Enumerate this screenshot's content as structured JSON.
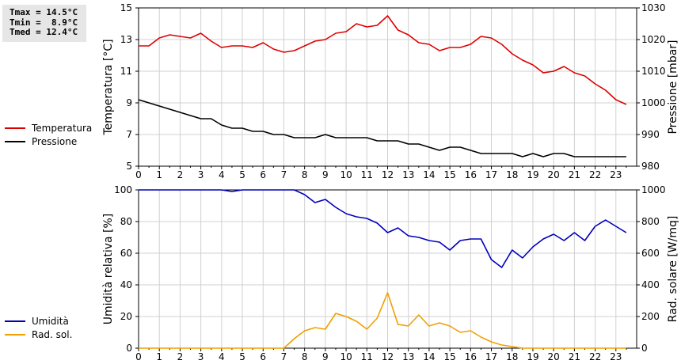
{
  "stats": {
    "tmax": "Tmax = 14.5°C",
    "tmin": "Tmin =  8.9°C",
    "tmed": "Tmed = 12.4°C"
  },
  "colors": {
    "temperatura": "#dd0000",
    "pressione": "#000000",
    "umidita": "#0000bb",
    "radsol": "#f0a000",
    "grid": "#d0d0d0"
  },
  "chart_data": [
    {
      "type": "line",
      "xlabel": "",
      "x_ticks": [
        "0",
        "1",
        "2",
        "3",
        "4",
        "5",
        "6",
        "7",
        "8",
        "9",
        "10",
        "11",
        "12",
        "13",
        "14",
        "15",
        "16",
        "17",
        "18",
        "19",
        "20",
        "21",
        "22",
        "23"
      ],
      "xlim": [
        0,
        24
      ],
      "ylabel_left": "Temperatura [°C]",
      "ylabel_right": "Pressione [mbar]",
      "ylim_left": [
        5,
        15
      ],
      "ylim_right": [
        980,
        1030
      ],
      "y_ticks_left": [
        "5",
        "7",
        "9",
        "11",
        "13",
        "15"
      ],
      "y_ticks_right": [
        "980",
        "990",
        "1000",
        "1010",
        "1020",
        "1030"
      ],
      "series": [
        {
          "name": "Temperatura",
          "axis": "left",
          "x": [
            0,
            0.5,
            1,
            1.5,
            2,
            2.5,
            3,
            3.5,
            4,
            4.5,
            5,
            5.5,
            6,
            6.5,
            7,
            7.5,
            8,
            8.5,
            9,
            9.5,
            10,
            10.5,
            11,
            11.5,
            12,
            12.5,
            13,
            13.5,
            14,
            14.5,
            15,
            15.5,
            16,
            16.5,
            17,
            17.5,
            18,
            18.5,
            19,
            19.5,
            20,
            20.5,
            21,
            21.5,
            22,
            22.5,
            23,
            23.5
          ],
          "values": [
            12.6,
            12.6,
            13.1,
            13.3,
            13.2,
            13.1,
            13.4,
            12.9,
            12.5,
            12.6,
            12.6,
            12.5,
            12.8,
            12.4,
            12.2,
            12.3,
            12.6,
            12.9,
            13.0,
            13.4,
            13.5,
            14.0,
            13.8,
            13.9,
            14.5,
            13.6,
            13.3,
            12.8,
            12.7,
            12.3,
            12.5,
            12.5,
            12.7,
            13.2,
            13.1,
            12.7,
            12.1,
            11.7,
            11.4,
            10.9,
            11.0,
            11.3,
            10.9,
            10.7,
            10.2,
            9.8,
            9.2,
            8.9
          ]
        },
        {
          "name": "Pressione",
          "axis": "right",
          "x": [
            0,
            0.5,
            1,
            1.5,
            2,
            2.5,
            3,
            3.5,
            4,
            4.5,
            5,
            5.5,
            6,
            6.5,
            7,
            7.5,
            8,
            8.5,
            9,
            9.5,
            10,
            10.5,
            11,
            11.5,
            12,
            12.5,
            13,
            13.5,
            14,
            14.5,
            15,
            15.5,
            16,
            16.5,
            17,
            17.5,
            18,
            18.5,
            19,
            19.5,
            20,
            20.5,
            21,
            21.5,
            22,
            22.5,
            23,
            23.5
          ],
          "values": [
            1001,
            1000,
            999,
            998,
            997,
            996,
            995,
            995,
            993,
            992,
            992,
            991,
            991,
            990,
            990,
            989,
            989,
            989,
            990,
            989,
            989,
            989,
            989,
            988,
            988,
            988,
            987,
            987,
            986,
            985,
            986,
            986,
            985,
            984,
            984,
            984,
            984,
            983,
            984,
            983,
            984,
            984,
            983,
            983,
            983,
            983,
            983,
            983
          ]
        }
      ]
    },
    {
      "type": "line",
      "xlabel": "",
      "x_ticks": [
        "0",
        "1",
        "2",
        "3",
        "4",
        "5",
        "6",
        "7",
        "8",
        "9",
        "10",
        "11",
        "12",
        "13",
        "14",
        "15",
        "16",
        "17",
        "18",
        "19",
        "20",
        "21",
        "22",
        "23"
      ],
      "xlim": [
        0,
        24
      ],
      "ylabel_left": "Umidità relativa [%]",
      "ylabel_right": "Rad. solare [W/mq]",
      "ylim_left": [
        0,
        100
      ],
      "ylim_right": [
        0,
        1000
      ],
      "y_ticks_left": [
        "0",
        "20",
        "40",
        "60",
        "80",
        "100"
      ],
      "y_ticks_right": [
        "0",
        "200",
        "400",
        "600",
        "800",
        "1000"
      ],
      "series": [
        {
          "name": "Umidità",
          "axis": "left",
          "x": [
            0,
            0.5,
            1,
            1.5,
            2,
            2.5,
            3,
            3.5,
            4,
            4.5,
            5,
            5.5,
            6,
            6.5,
            7,
            7.5,
            8,
            8.5,
            9,
            9.5,
            10,
            10.5,
            11,
            11.5,
            12,
            12.5,
            13,
            13.5,
            14,
            14.5,
            15,
            15.5,
            16,
            16.5,
            17,
            17.5,
            18,
            18.5,
            19,
            19.5,
            20,
            20.5,
            21,
            21.5,
            22,
            22.5,
            23,
            23.5
          ],
          "values": [
            100,
            100,
            100,
            100,
            100,
            100,
            100,
            100,
            100,
            99,
            100,
            100,
            100,
            100,
            100,
            100,
            97,
            92,
            94,
            89,
            85,
            83,
            82,
            79,
            73,
            76,
            71,
            70,
            68,
            67,
            62,
            68,
            69,
            69,
            56,
            51,
            62,
            57,
            64,
            69,
            72,
            68,
            73,
            68,
            77,
            81,
            77,
            73
          ]
        },
        {
          "name": "Rad. sol.",
          "axis": "right",
          "x": [
            0,
            0.5,
            1,
            1.5,
            2,
            2.5,
            3,
            3.5,
            4,
            4.5,
            5,
            5.5,
            6,
            6.5,
            7,
            7.5,
            8,
            8.5,
            9,
            9.5,
            10,
            10.5,
            11,
            11.5,
            12,
            12.5,
            13,
            13.5,
            14,
            14.5,
            15,
            15.5,
            16,
            16.5,
            17,
            17.5,
            18,
            18.5,
            19,
            19.5,
            20,
            20.5,
            21,
            21.5,
            22,
            22.5,
            23,
            23.5
          ],
          "values": [
            0,
            0,
            0,
            0,
            0,
            0,
            0,
            0,
            0,
            0,
            0,
            0,
            0,
            0,
            0,
            60,
            110,
            130,
            120,
            220,
            200,
            170,
            120,
            190,
            350,
            150,
            140,
            210,
            140,
            160,
            140,
            100,
            110,
            70,
            40,
            20,
            10,
            0,
            0,
            0,
            0,
            0,
            0,
            0,
            0,
            0,
            0,
            0
          ]
        }
      ]
    }
  ]
}
